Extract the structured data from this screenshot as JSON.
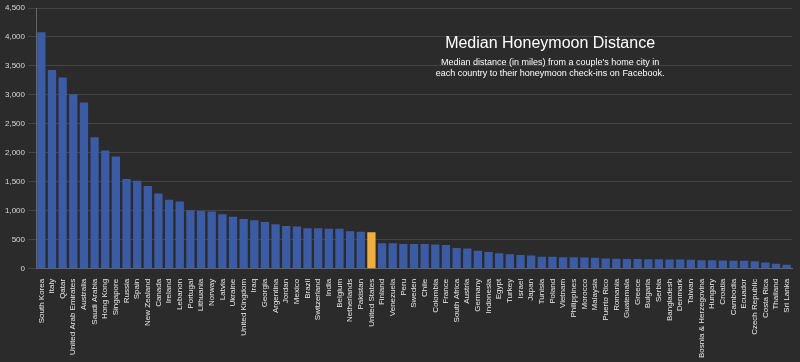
{
  "chart_data": {
    "type": "bar",
    "title": "Median Honeymoon Distance",
    "subtitle": [
      "Median distance (in miles) from a couple's home city in",
      "each country to their honeymoon check-ins on Facebook."
    ],
    "categories": [
      "South Korea",
      "Italy",
      "Qatar",
      "United Arab Emirates",
      "Australia",
      "Saudi Arabia",
      "Hong Kong",
      "Singapore",
      "Russia",
      "Spain",
      "New Zealand",
      "Canada",
      "Ireland",
      "Lebanon",
      "Portugal",
      "Lithuania",
      "Norway",
      "Latvia",
      "Ukraine",
      "United Kingdom",
      "Iraq",
      "Georgia",
      "Argentina",
      "Jordan",
      "Mexico",
      "Brazil",
      "Switzerland",
      "India",
      "Belgium",
      "Netherlands",
      "Pakistan",
      "United States",
      "Finland",
      "Venezuela",
      "Peru",
      "Sweden",
      "Chile",
      "Colombia",
      "France",
      "South Africa",
      "Austria",
      "Germany",
      "Indonesia",
      "Egypt",
      "Turkey",
      "Israel",
      "Japan",
      "Tunisia",
      "Poland",
      "Vietnam",
      "Philippines",
      "Morocco",
      "Malaysia",
      "Puerto Rico",
      "Romania",
      "Guatemala",
      "Greece",
      "Bulgaria",
      "Serbia",
      "Bangladesh",
      "Denmark",
      "Taiwan",
      "Bosnia & Herzegovina",
      "Hungary",
      "Croatia",
      "Cambodia",
      "Ecuador",
      "Czech Republic",
      "Costa Rica",
      "Thailand",
      "Sri Lanka"
    ],
    "values": [
      4080,
      3430,
      3300,
      3010,
      2870,
      2270,
      2040,
      1940,
      1550,
      1520,
      1430,
      1300,
      1190,
      1160,
      1010,
      1000,
      990,
      940,
      900,
      860,
      840,
      810,
      770,
      740,
      730,
      700,
      700,
      690,
      690,
      650,
      640,
      630,
      440,
      440,
      430,
      430,
      430,
      420,
      410,
      360,
      350,
      310,
      290,
      270,
      250,
      240,
      230,
      210,
      210,
      200,
      200,
      195,
      190,
      180,
      175,
      170,
      170,
      165,
      165,
      160,
      160,
      155,
      150,
      150,
      145,
      140,
      140,
      130,
      110,
      90,
      70
    ],
    "colors": [
      "#3b5ba5",
      "#3b5ba5",
      "#3b5ba5",
      "#3b5ba5",
      "#3b5ba5",
      "#3b5ba5",
      "#3b5ba5",
      "#3b5ba5",
      "#3b5ba5",
      "#3b5ba5",
      "#3b5ba5",
      "#3b5ba5",
      "#3b5ba5",
      "#3b5ba5",
      "#3b5ba5",
      "#3b5ba5",
      "#3b5ba5",
      "#3b5ba5",
      "#3b5ba5",
      "#3b5ba5",
      "#3b5ba5",
      "#3b5ba5",
      "#3b5ba5",
      "#3b5ba5",
      "#3b5ba5",
      "#3b5ba5",
      "#3b5ba5",
      "#3b5ba5",
      "#3b5ba5",
      "#3b5ba5",
      "#3b5ba5",
      "#f0b03f",
      "#3b5ba5",
      "#3b5ba5",
      "#3b5ba5",
      "#3b5ba5",
      "#3b5ba5",
      "#3b5ba5",
      "#3b5ba5",
      "#3b5ba5",
      "#3b5ba5",
      "#3b5ba5",
      "#3b5ba5",
      "#3b5ba5",
      "#3b5ba5",
      "#3b5ba5",
      "#3b5ba5",
      "#3b5ba5",
      "#3b5ba5",
      "#3b5ba5",
      "#3b5ba5",
      "#3b5ba5",
      "#3b5ba5",
      "#3b5ba5",
      "#3b5ba5",
      "#3b5ba5",
      "#3b5ba5",
      "#3b5ba5",
      "#3b5ba5",
      "#3b5ba5",
      "#3b5ba5",
      "#3b5ba5",
      "#3b5ba5",
      "#3b5ba5",
      "#3b5ba5",
      "#3b5ba5",
      "#3b5ba5",
      "#3b5ba5",
      "#3b5ba5",
      "#3b5ba5",
      "#3b5ba5"
    ],
    "ylim": [
      0,
      4500
    ],
    "yticks": [
      0,
      500,
      {
        "value": 1000,
        "label": "1,000"
      },
      {
        "value": 1500,
        "label": "1,500"
      },
      {
        "value": 2000,
        "label": "2,000"
      },
      {
        "value": 2500,
        "label": "2,500"
      },
      {
        "value": 3000,
        "label": "3,000"
      },
      {
        "value": 3500,
        "label": "3,500"
      },
      {
        "value": 4000,
        "label": "4,000"
      },
      {
        "value": 4500,
        "label": "4,500"
      }
    ],
    "grid": true
  }
}
